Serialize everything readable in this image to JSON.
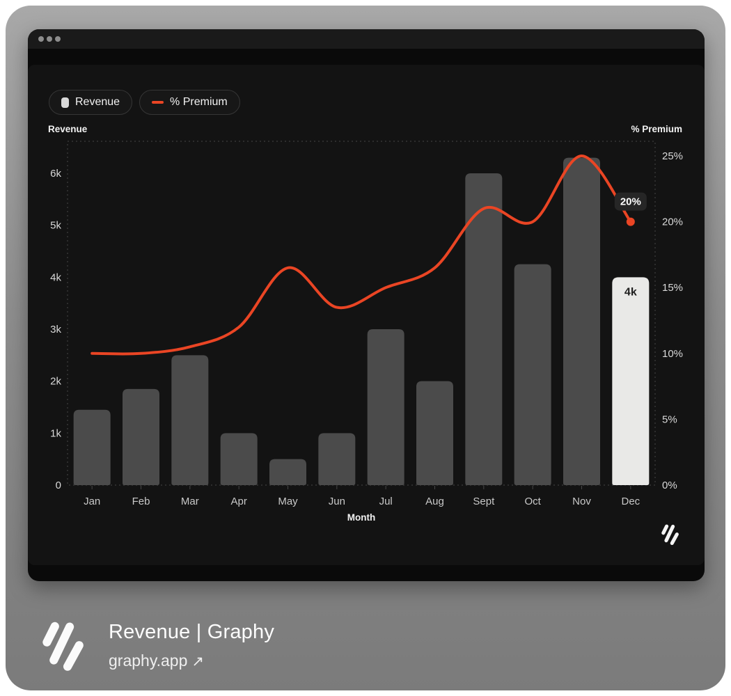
{
  "window": {
    "controls": "traffic-dots"
  },
  "legend": [
    {
      "label": "Revenue",
      "swatch": "bar-swatch"
    },
    {
      "label": "% Premium",
      "swatch": "line-swatch"
    }
  ],
  "chart_data": {
    "type": "bar",
    "subtype": "bar+line combo, dual axis",
    "categories": [
      "Jan",
      "Feb",
      "Mar",
      "Apr",
      "May",
      "Jun",
      "Jul",
      "Aug",
      "Sept",
      "Oct",
      "Nov",
      "Dec"
    ],
    "series": [
      {
        "name": "Revenue",
        "type": "bar",
        "axis": "left",
        "values": [
          1450,
          1850,
          2500,
          1000,
          500,
          1000,
          3000,
          2000,
          6000,
          4250,
          6300,
          4000
        ],
        "highlight_index": 11,
        "highlight_label": "4k"
      },
      {
        "name": "% Premium",
        "type": "line",
        "axis": "right",
        "values": [
          10,
          10,
          10.5,
          12,
          16.5,
          13.5,
          15,
          16.5,
          21,
          20,
          25,
          20
        ],
        "end_point_tooltip": "20%"
      }
    ],
    "left_axis": {
      "title": "Revenue",
      "ticks": [
        "0",
        "1k",
        "2k",
        "3k",
        "4k",
        "5k",
        "6k"
      ],
      "min": 0,
      "max": 6000
    },
    "right_axis": {
      "title": "% Premium",
      "ticks": [
        "0%",
        "5%",
        "10%",
        "15%",
        "20%",
        "25%"
      ],
      "min": 0,
      "max": 25
    },
    "x_axis": {
      "title": "Month"
    },
    "grid": "dashed plot border only, no inner gridlines",
    "legend_position": "top-left"
  },
  "footer": {
    "title": "Revenue | Graphy",
    "link": "graphy.app",
    "arrow": "↗"
  },
  "colors": {
    "bar": "#4b4b4b",
    "bar_highlight": "#e9e9e7",
    "bar_highlight_text": "#1f1f1f",
    "line": "#ea4524",
    "tooltip_bg": "#262626",
    "tooltip_text": "#ffffff",
    "tick_text": "#d9d9d9",
    "month_text": "#c9c9c9",
    "plot_border": "#474747",
    "panel_bg": "#131313",
    "frame_gray": "#8d8d8d"
  }
}
